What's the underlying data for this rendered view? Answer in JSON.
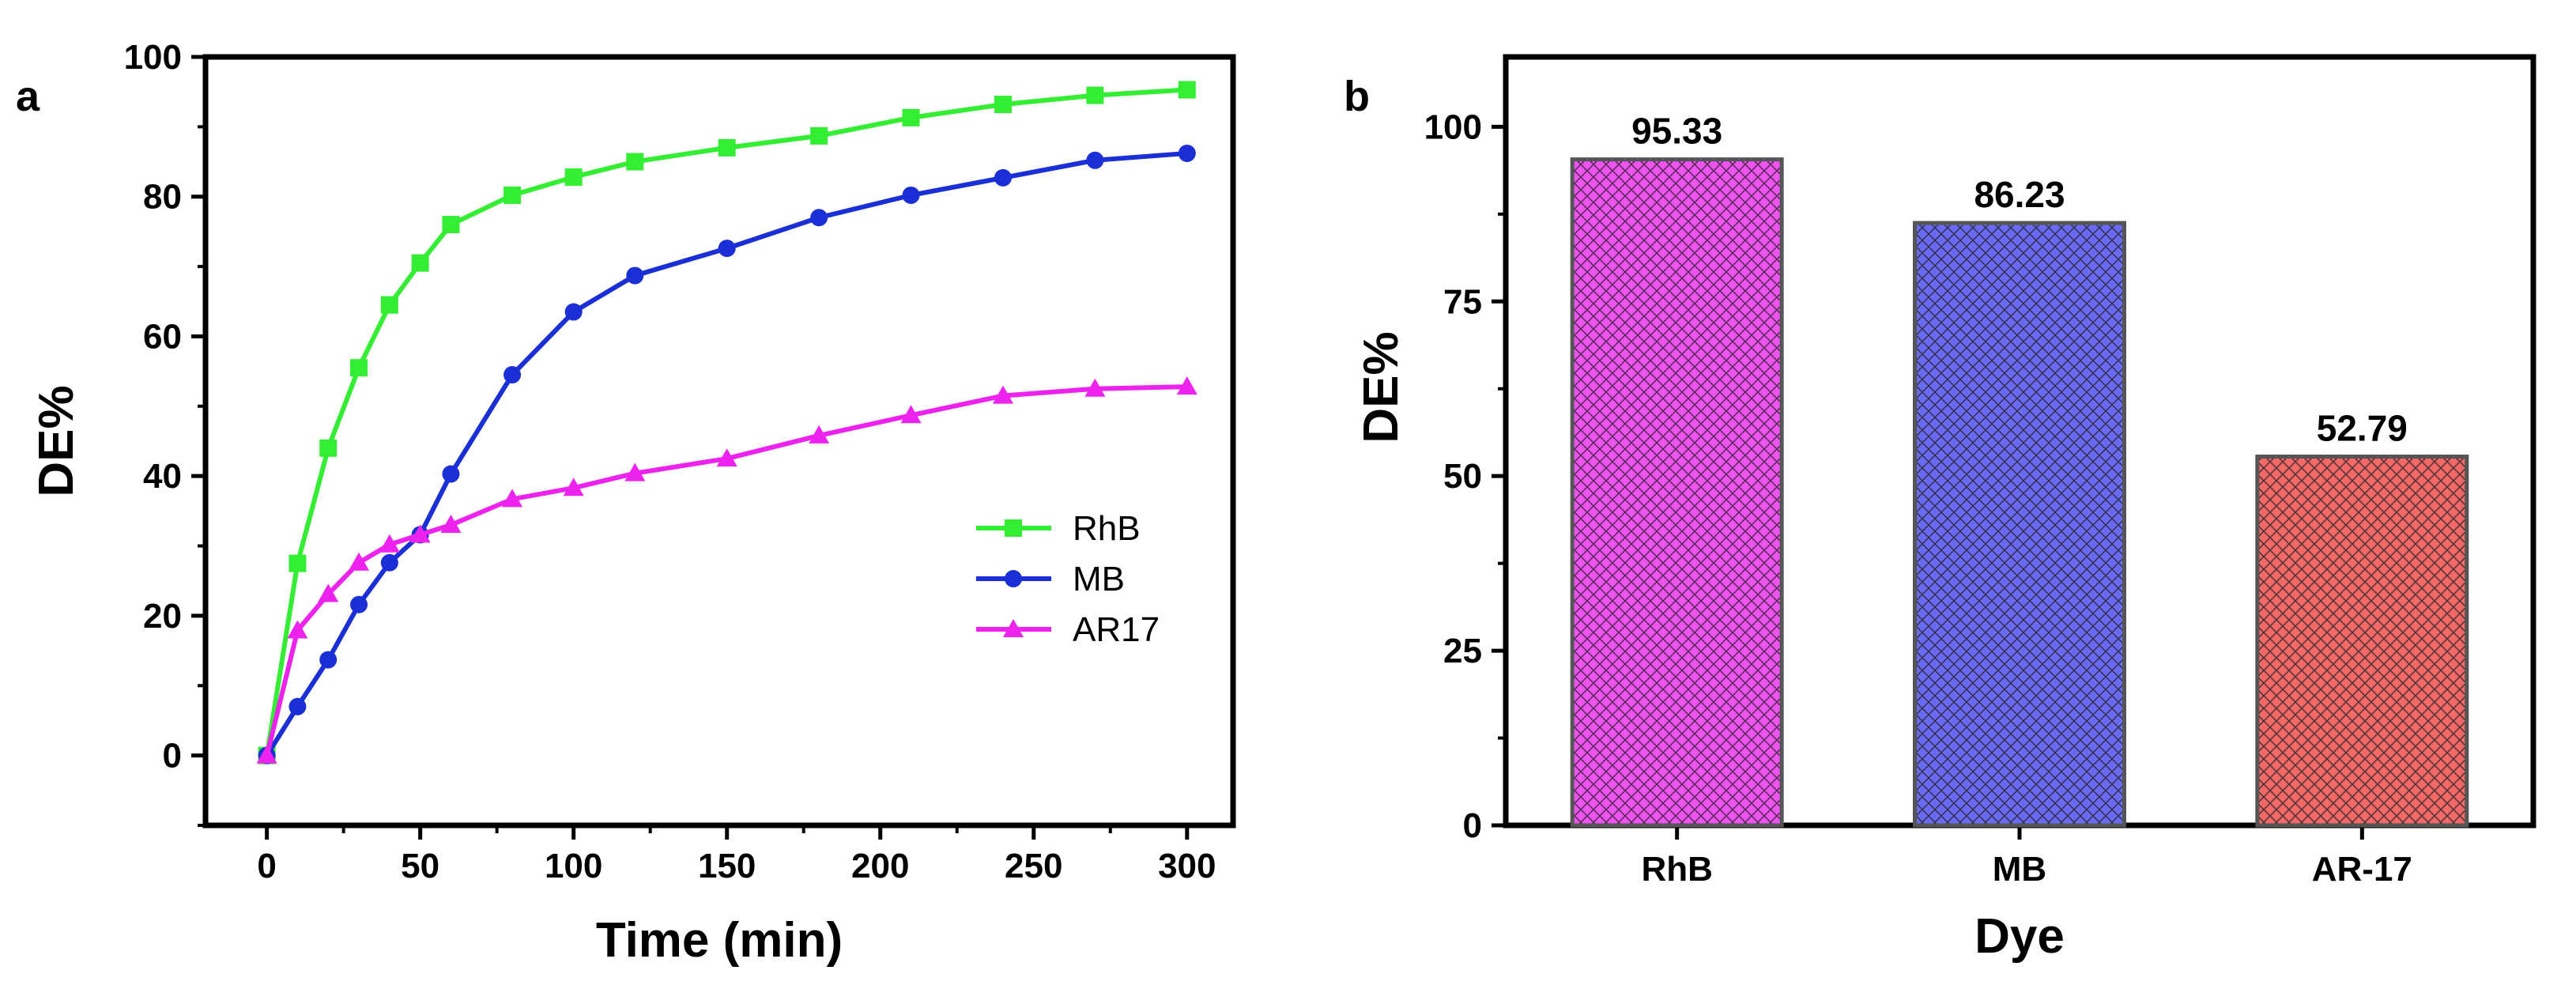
{
  "chart_data": [
    {
      "panel": "a",
      "type": "line",
      "xlabel": "Time (min)",
      "ylabel": "DE%",
      "xlim": [
        -20,
        315
      ],
      "ylim": [
        -10,
        100
      ],
      "xticks": [
        0,
        50,
        100,
        150,
        200,
        250,
        300
      ],
      "yticks": [
        0,
        20,
        40,
        60,
        80,
        100
      ],
      "legend_position": "center-right",
      "series": [
        {
          "name": "RhB",
          "color": "#33ee33",
          "marker": "square",
          "x": [
            0,
            10,
            20,
            30,
            40,
            50,
            60,
            80,
            100,
            120,
            150,
            180,
            210,
            240,
            270,
            300
          ],
          "y": [
            0,
            27.5,
            44,
            55.5,
            64.5,
            70.5,
            76,
            80.2,
            82.8,
            85,
            87,
            88.7,
            91.3,
            93.2,
            94.5,
            95.3
          ]
        },
        {
          "name": "MB",
          "color": "#1a2fd6",
          "marker": "circle",
          "x": [
            0,
            10,
            20,
            30,
            40,
            50,
            60,
            80,
            100,
            120,
            150,
            180,
            210,
            240,
            270,
            300
          ],
          "y": [
            0,
            7,
            13.7,
            21.6,
            27.6,
            31.6,
            40.3,
            54.5,
            63.5,
            68.7,
            72.6,
            77,
            80.2,
            82.7,
            85.2,
            86.2
          ]
        },
        {
          "name": "AR17",
          "color": "#ee22ee",
          "marker": "triangle",
          "x": [
            0,
            10,
            20,
            30,
            40,
            50,
            60,
            80,
            100,
            120,
            150,
            180,
            210,
            240,
            270,
            300
          ],
          "y": [
            0,
            17.9,
            23.1,
            27.6,
            30.2,
            31.6,
            33,
            36.7,
            38.3,
            40.4,
            42.5,
            45.8,
            48.7,
            51.5,
            52.5,
            52.8
          ]
        }
      ]
    },
    {
      "panel": "b",
      "type": "bar",
      "xlabel": "Dye",
      "ylabel": "DE%",
      "ylim": [
        0,
        110
      ],
      "yticks": [
        0,
        25,
        50,
        75,
        100
      ],
      "categories": [
        "RhB",
        "MB",
        "AR-17"
      ],
      "values": [
        95.33,
        86.23,
        52.79
      ],
      "value_labels": [
        "95.33",
        "86.23",
        "52.79"
      ],
      "colors": [
        "#f052f0",
        "#6a6af2",
        "#f06868"
      ],
      "pattern": "crosshatch"
    }
  ]
}
